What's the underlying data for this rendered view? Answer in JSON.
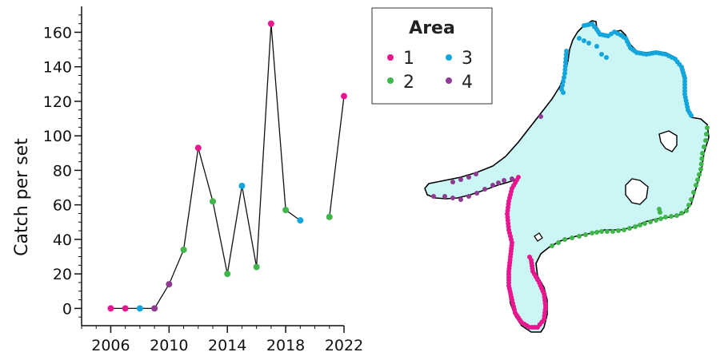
{
  "chart_data": [
    {
      "type": "line",
      "ylabel": "Catch per set",
      "xlabel": "",
      "xlim": [
        2004,
        2022
      ],
      "ylim": [
        -10,
        175
      ],
      "xticks": [
        2006,
        2010,
        2014,
        2018,
        2022
      ],
      "yticks": [
        0,
        20,
        40,
        60,
        80,
        100,
        120,
        140,
        160
      ],
      "grid": false,
      "points": [
        {
          "year": 2006,
          "value": 0,
          "area": "1"
        },
        {
          "year": 2007,
          "value": 0,
          "area": "1"
        },
        {
          "year": 2008,
          "value": 0,
          "area": "3"
        },
        {
          "year": 2009,
          "value": 0,
          "area": "4"
        },
        {
          "year": 2010,
          "value": 14,
          "area": "4"
        },
        {
          "year": 2011,
          "value": 34,
          "area": "2"
        },
        {
          "year": 2012,
          "value": 93,
          "area": "1"
        },
        {
          "year": 2013,
          "value": 62,
          "area": "2"
        },
        {
          "year": 2014,
          "value": 20,
          "area": "2"
        },
        {
          "year": 2015,
          "value": 71,
          "area": "3"
        },
        {
          "year": 2016,
          "value": 24,
          "area": "2"
        },
        {
          "year": 2017,
          "value": 165,
          "area": "1"
        },
        {
          "year": 2018,
          "value": 57,
          "area": "2"
        },
        {
          "year": 2019,
          "value": 51,
          "area": "3"
        },
        {
          "year": 2021,
          "value": 53,
          "area": "2"
        },
        {
          "year": 2022,
          "value": 123,
          "area": "1"
        }
      ],
      "segments": [
        [
          0,
          13
        ],
        [
          14,
          15
        ]
      ]
    },
    {
      "type": "map",
      "water_color": "#ccf5f5",
      "outline_color": "#000000"
    }
  ],
  "legend": {
    "title": "Area",
    "placement": "top-right of plot",
    "items": [
      {
        "label": "1",
        "color": "#e8168f"
      },
      {
        "label": "2",
        "color": "#3fb54a"
      },
      {
        "label": "3",
        "color": "#12a6dc"
      },
      {
        "label": "4",
        "color": "#8f3a93"
      }
    ]
  }
}
